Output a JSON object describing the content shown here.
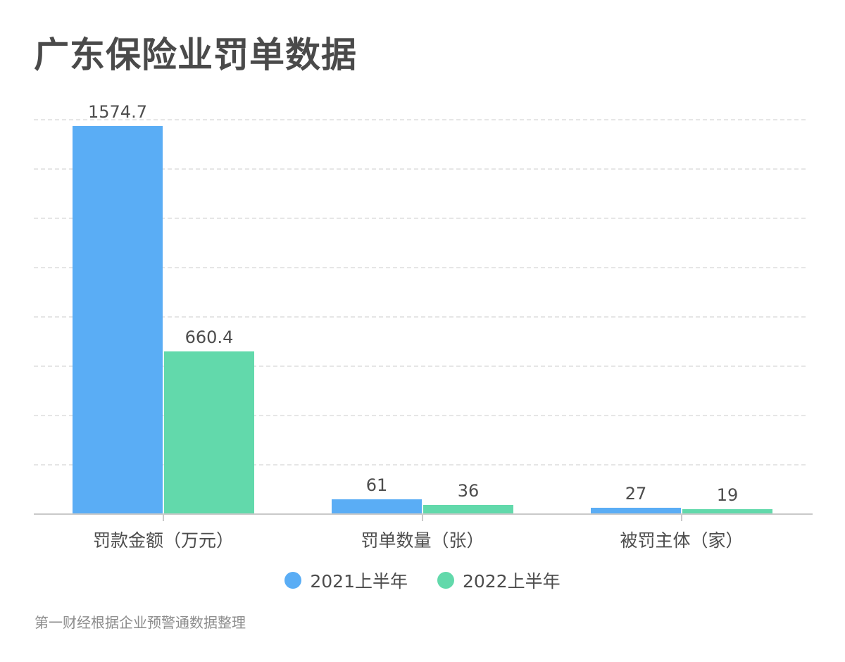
{
  "title": "广东保险业罚单数据",
  "source": "第一财经根据企业预警通数据整理",
  "colors": {
    "series_2021": "#5aadf5",
    "series_2022": "#62d9ab"
  },
  "legend": [
    {
      "label": "2021上半年",
      "color": "#5aadf5"
    },
    {
      "label": "2022上半年",
      "color": "#62d9ab"
    }
  ],
  "chart_data": {
    "type": "bar",
    "title": "广东保险业罚单数据",
    "categories": [
      "罚款金额（万元）",
      "罚单数量（张）",
      "被罚主体（家）"
    ],
    "series": [
      {
        "name": "2021上半年",
        "values": [
          1574.7,
          61,
          27
        ]
      },
      {
        "name": "2022上半年",
        "values": [
          660.4,
          36,
          19
        ]
      }
    ],
    "value_labels": {
      "2021上半年": [
        "1574.7",
        "61",
        "27"
      ],
      "2022上半年": [
        "660.4",
        "36",
        "19"
      ]
    },
    "xlabel": "",
    "ylabel": "",
    "ylim": [
      0,
      1600
    ],
    "grid": true,
    "y_axis_visible": false,
    "legend_position": "bottom"
  }
}
